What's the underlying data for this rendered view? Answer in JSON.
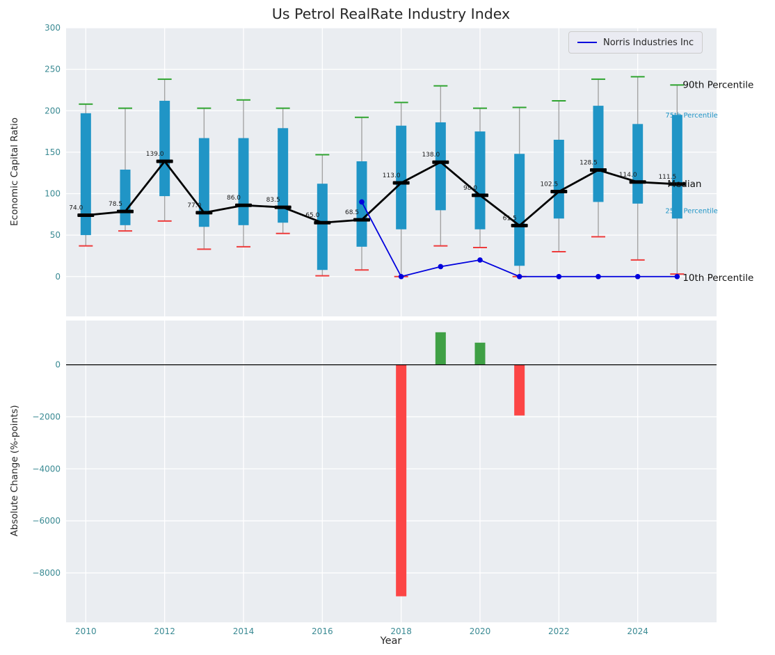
{
  "figure": {
    "title": "Us Petrol RealRate Industry Index",
    "legend": {
      "label": "Norris Industries Inc"
    },
    "percentile_labels": {
      "p90": "90th Percentile",
      "p75": "75th Percentile",
      "median": "Median",
      "p25": "25th Percentile",
      "p10": "10th Percentile"
    },
    "colors": {
      "axes_bg": "#eaedf1",
      "grid": "#ffffff",
      "box": "#2095c6",
      "whisker": "#a3a3a3",
      "cap_top": "#2fa42f",
      "cap_bottom": "#ee3b3b",
      "median": "#000000",
      "company_line": "#0000dd",
      "bar_up": "#3fa045",
      "bar_down": "#fc4545",
      "tick_label": "#3a8a93",
      "text": "#262626",
      "zero_line": "#000000"
    }
  },
  "chart_data": [
    {
      "type": "boxplot",
      "title": "Us Petrol RealRate Industry Index",
      "ylabel": "Economic Capital Ratio",
      "ylim": [
        -48,
        300
      ],
      "yticks": [
        0,
        50,
        100,
        150,
        200,
        250,
        300
      ],
      "xlim": [
        2009.5,
        2026
      ],
      "xticks": [
        2010,
        2012,
        2014,
        2016,
        2018,
        2020,
        2022,
        2024
      ],
      "grid": true,
      "legend_position": "upper right",
      "years": [
        2010,
        2011,
        2012,
        2013,
        2014,
        2015,
        2016,
        2017,
        2018,
        2019,
        2020,
        2021,
        2022,
        2023,
        2024,
        2025
      ],
      "p90": [
        208,
        203,
        238,
        203,
        213,
        203,
        147,
        192,
        210,
        230,
        203,
        204,
        212,
        238,
        241,
        231
      ],
      "p75": [
        197,
        129,
        212,
        167,
        167,
        179,
        112,
        139,
        182,
        186,
        175,
        148,
        165,
        206,
        184,
        195
      ],
      "median": [
        74,
        78.5,
        139,
        77,
        86,
        83.5,
        65,
        68.5,
        113,
        138,
        98,
        61.5,
        102.5,
        128.5,
        114,
        111.5
      ],
      "p25": [
        50,
        62,
        97,
        60,
        62,
        65,
        8,
        36,
        57,
        80,
        57,
        13,
        70,
        90,
        88,
        70
      ],
      "p10": [
        37,
        55,
        67,
        33,
        36,
        52,
        1,
        8,
        0,
        37,
        35,
        0,
        30,
        48,
        20,
        3
      ],
      "median_labels": [
        "74.0",
        "78.5",
        "139.0",
        "77.0",
        "86.0",
        "83.5",
        "65.0",
        "68.5",
        "113.0",
        "138.0",
        "98.0",
        "61.5",
        "102.5",
        "128.5",
        "114.0",
        "111.5"
      ],
      "series": [
        {
          "name": "Norris Industries Inc",
          "type": "line",
          "x": [
            2017,
            2018,
            2019,
            2020,
            2021,
            2022,
            2023,
            2024,
            2025
          ],
          "y": [
            90,
            0,
            12,
            20,
            0,
            0,
            0,
            0,
            0
          ]
        }
      ]
    },
    {
      "type": "bar",
      "ylabel": "Absolute Change (%-points)",
      "xlabel": "Year",
      "ylim": [
        -9900,
        1700
      ],
      "yticks": [
        0,
        -2000,
        -4000,
        -6000,
        -8000
      ],
      "xticks": [
        2010,
        2012,
        2014,
        2016,
        2018,
        2020,
        2022,
        2024
      ],
      "grid": true,
      "x": [
        2018,
        2019,
        2020,
        2021
      ],
      "values": [
        -8900,
        1250,
        850,
        -1950
      ],
      "color_rule": "green if positive, red if negative"
    }
  ]
}
